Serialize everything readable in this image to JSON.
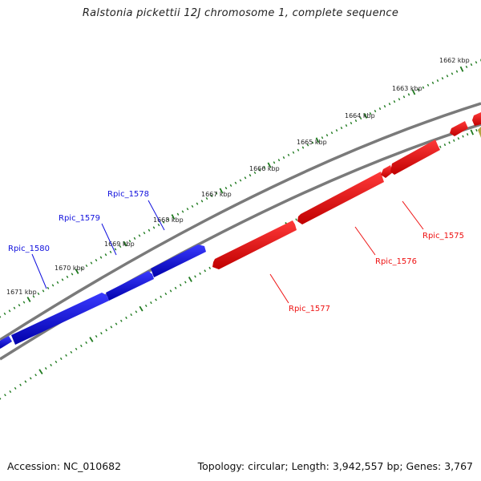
{
  "title": "Ralstonia pickettii 12J chromosome 1, complete sequence",
  "footer": {
    "accession": "Accession: NC_010682",
    "summary": "Topology: circular; Length: 3,942,557 bp; Genes: 3,767"
  },
  "colors": {
    "forward_gene": "#1010dd",
    "reverse_gene": "#ee1111",
    "backbone": "#777777",
    "ticks": "#1f7a1f",
    "other_gene": "#b5a642"
  },
  "kbp_ticks": [
    "1662 kbp",
    "1663 kbp",
    "1664 kbp",
    "1665 kbp",
    "1666 kbp",
    "1667 kbp",
    "1668 kbp",
    "1669 kbp",
    "1670 kbp",
    "1671 kbp"
  ],
  "genes": {
    "forward": [
      "Rpic_1578",
      "Rpic_1579",
      "Rpic_1580"
    ],
    "reverse": [
      "Rpic_1575",
      "Rpic_1576",
      "Rpic_1577"
    ]
  }
}
